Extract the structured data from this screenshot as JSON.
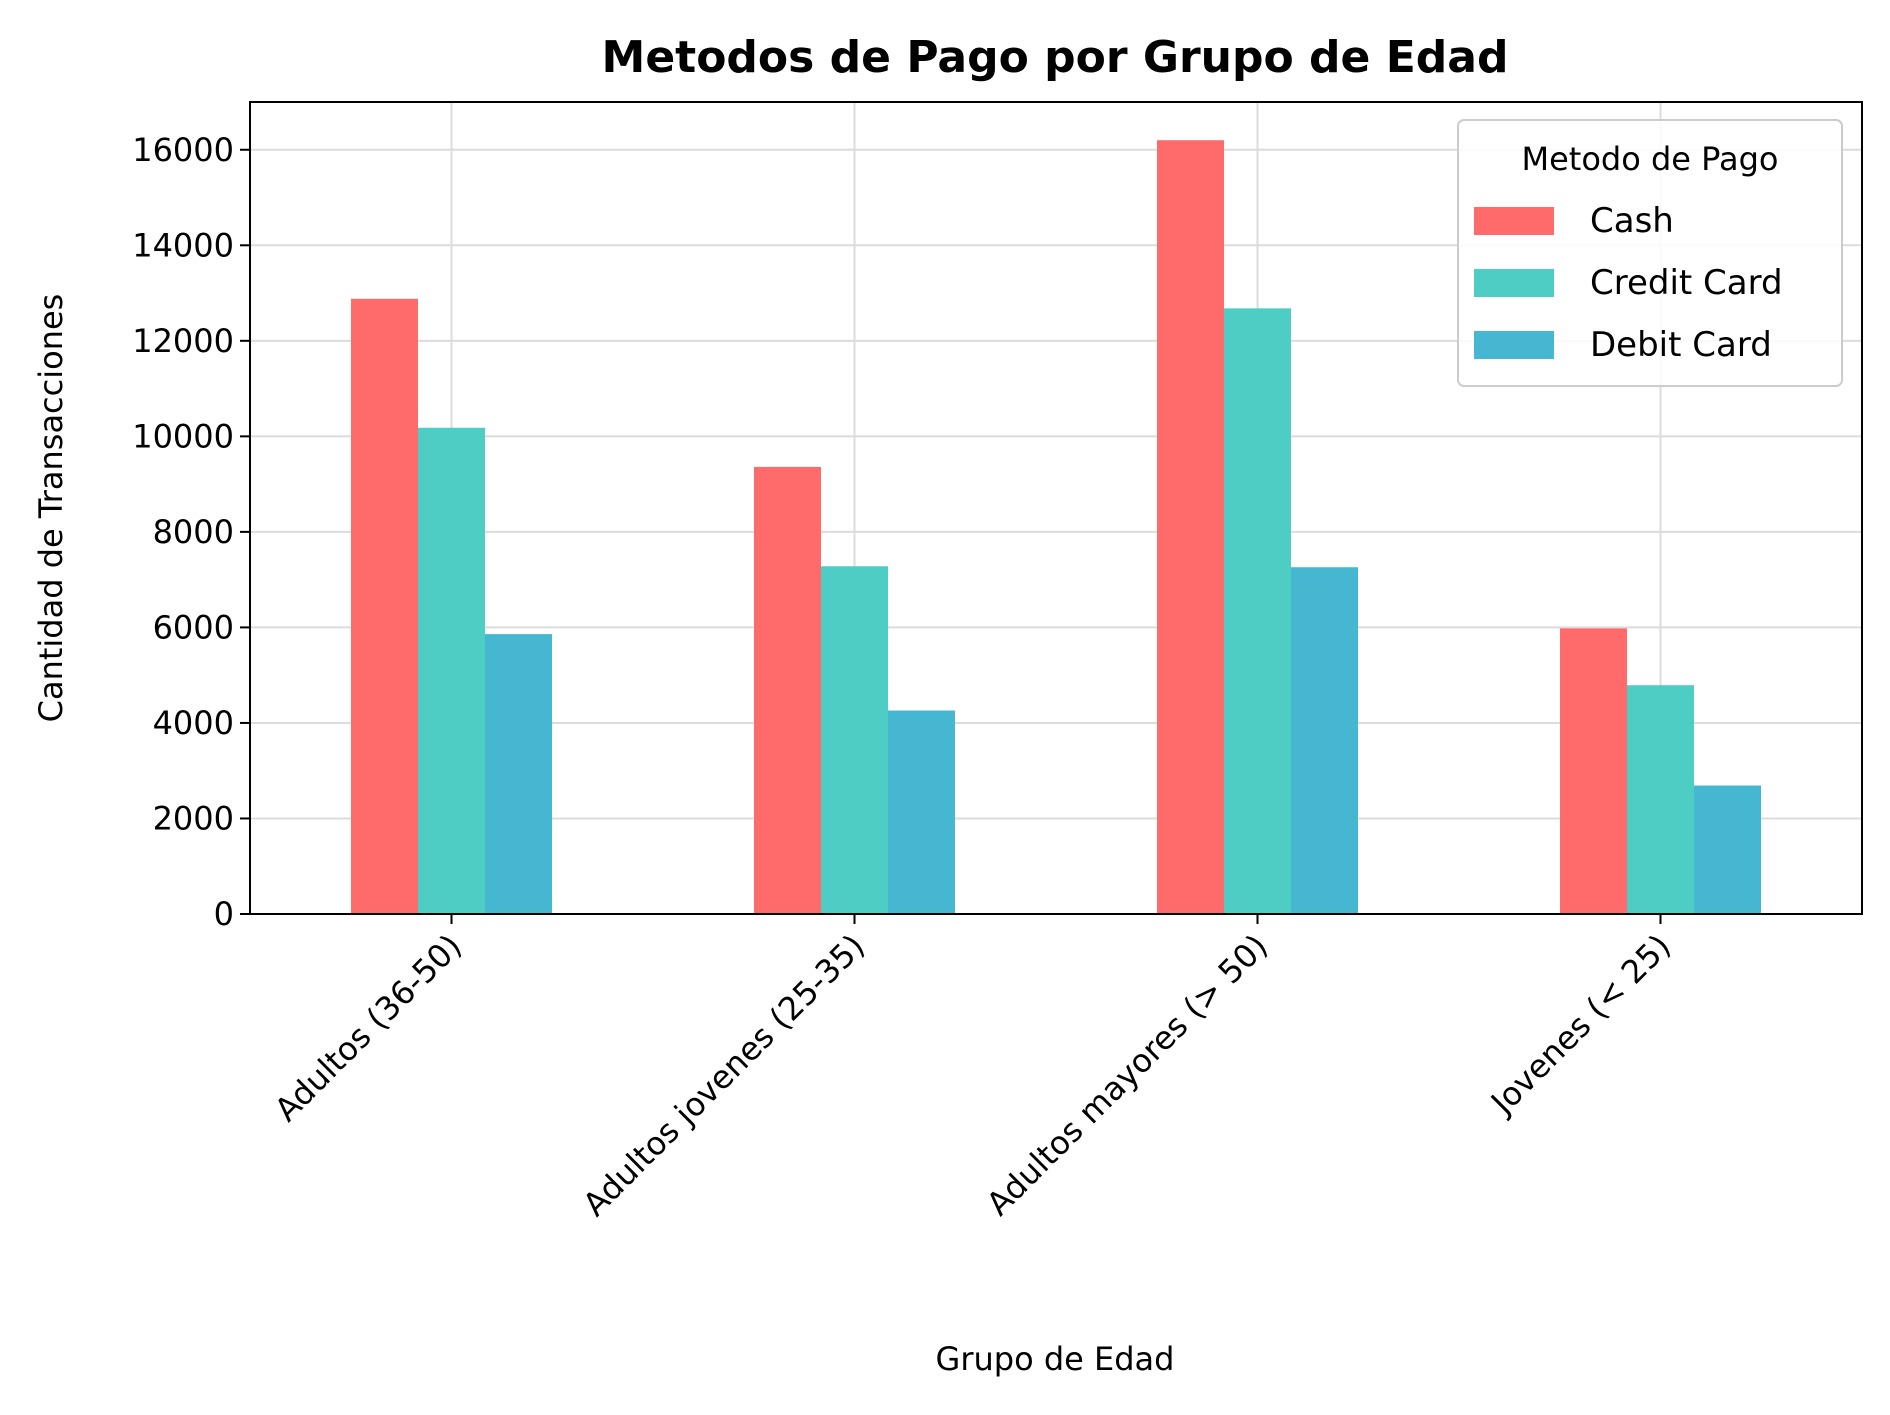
{
  "chart_data": {
    "type": "bar",
    "title": "Metodos de Pago por Grupo de Edad",
    "xlabel": "Grupo de Edad",
    "ylabel": "Cantidad de Transacciones",
    "categories": [
      "Adultos (36-50)",
      "Adultos jovenes (25-35)",
      "Adultos mayores (> 50)",
      "Jovenes (< 25)"
    ],
    "series": [
      {
        "name": "Cash",
        "values": [
          12880,
          9360,
          16200,
          5980
        ],
        "color": "#FF6B6B"
      },
      {
        "name": "Credit Card",
        "values": [
          10180,
          7280,
          12680,
          4790
        ],
        "color": "#4ECDC4"
      },
      {
        "name": "Debit Card",
        "values": [
          5860,
          4260,
          7260,
          2690
        ],
        "color": "#45B7D1"
      }
    ],
    "ylim": [
      0,
      17000
    ],
    "yticks": [
      "0",
      "2000",
      "4000",
      "6000",
      "8000",
      "10000",
      "12000",
      "14000",
      "16000"
    ],
    "grid": true,
    "legend": {
      "title": "Metodo de Pago",
      "position": "top-right"
    }
  }
}
